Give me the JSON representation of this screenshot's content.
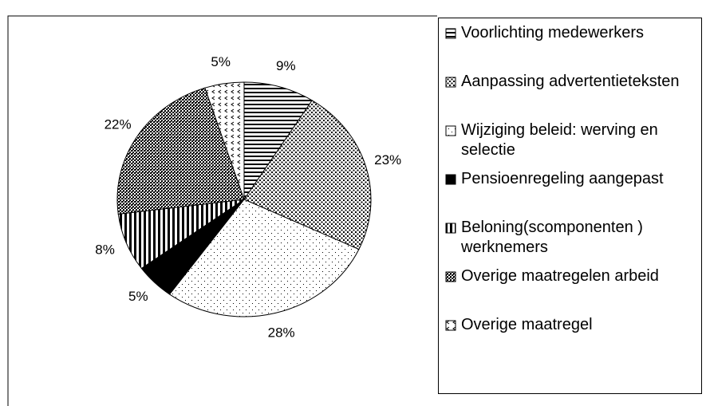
{
  "chart_data": {
    "type": "pie",
    "categories": [
      "Voorlichting medewerkers",
      "Aanpassing advertentieteksten",
      "Wijziging beleid: werving en selectie",
      "Pensioenregeling aangepast",
      "Beloning(scomponenten ) werknemers",
      "Overige maatregelen arbeid",
      "Overige maatregel"
    ],
    "values": [
      9,
      23,
      28,
      5,
      8,
      22,
      5
    ],
    "value_labels": [
      "9%",
      "23%",
      "28%",
      "5%",
      "8%",
      "22%",
      "5%"
    ],
    "patterns": [
      "horizontal-lines",
      "dense-dots",
      "sparse-dots",
      "solid",
      "vertical-lines",
      "checker",
      "chevrons"
    ],
    "color": "#000000",
    "legend": "right"
  }
}
